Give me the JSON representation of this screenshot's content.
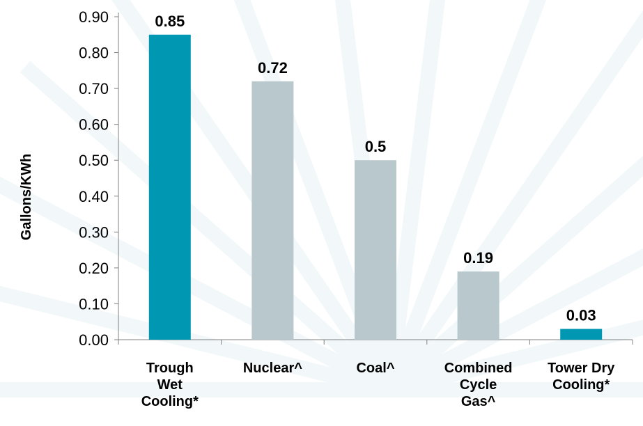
{
  "chart_data": {
    "type": "bar",
    "title": "",
    "xlabel": "",
    "ylabel": "Gallons/KWh",
    "ylim": [
      0,
      0.9
    ],
    "yticks": [
      "0.00",
      "0.10",
      "0.20",
      "0.30",
      "0.40",
      "0.50",
      "0.60",
      "0.70",
      "0.80",
      "0.90"
    ],
    "grid": false,
    "categories": [
      [
        "Trough",
        "Wet",
        "Cooling*"
      ],
      [
        "Nuclear^"
      ],
      [
        "Coal^"
      ],
      [
        "Combined",
        "Cycle",
        "Gas^"
      ],
      [
        "Tower Dry",
        "Cooling*"
      ]
    ],
    "values": [
      0.85,
      0.72,
      0.5,
      0.19,
      0.03
    ],
    "data_labels": [
      "0.85",
      "0.72",
      "0.5",
      "0.19",
      "0.03"
    ],
    "bar_colors": [
      "#0097b2",
      "#b8c8cd",
      "#b8c8cd",
      "#b8c8cd",
      "#0097b2"
    ]
  },
  "colors": {
    "accent": "#0097b2",
    "neutral_bar": "#b8c8cd",
    "axis": "#808080"
  }
}
